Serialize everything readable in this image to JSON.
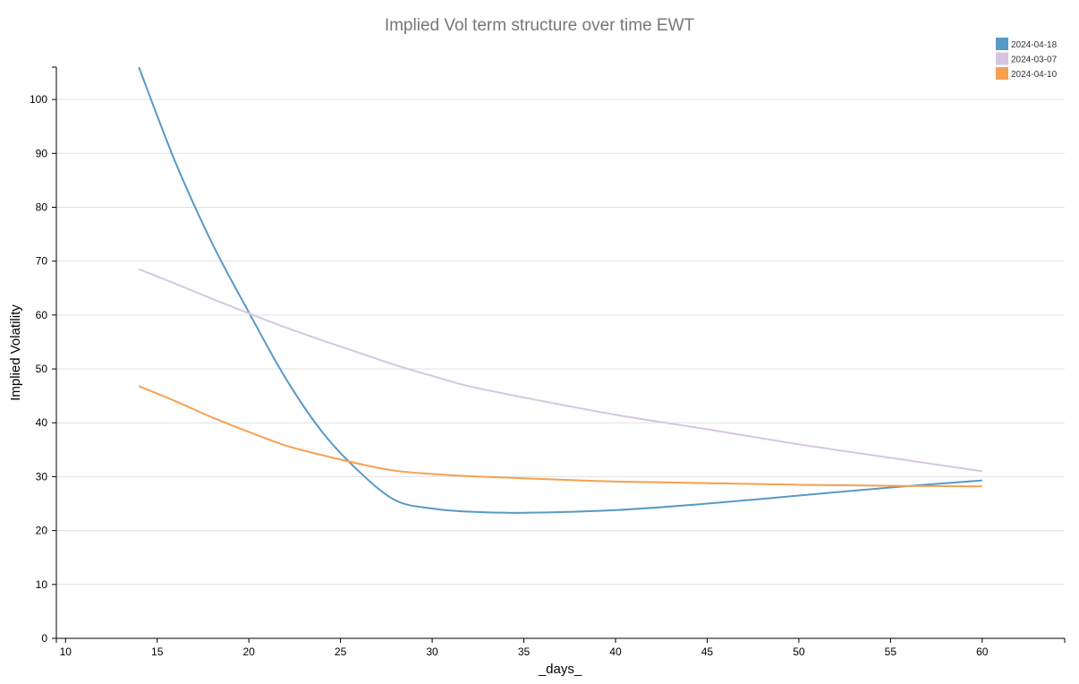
{
  "chart_data": {
    "type": "line",
    "title": "Implied Vol term structure over time EWT",
    "xlabel": "_days_",
    "ylabel": "Implied Volatility",
    "xlim": [
      9.5,
      64.5
    ],
    "ylim": [
      0,
      106
    ],
    "x_ticks": [
      10,
      15,
      20,
      25,
      30,
      35,
      40,
      45,
      50,
      55,
      60
    ],
    "y_ticks": [
      0,
      10,
      20,
      30,
      40,
      50,
      60,
      70,
      80,
      90,
      100
    ],
    "grid": true,
    "legend_position": "top-right",
    "series": [
      {
        "name": "2024-04-18",
        "color": "#5799c7",
        "x": [
          14,
          16,
          18,
          20,
          22,
          24,
          26,
          28,
          30,
          32,
          35,
          40,
          45,
          50,
          55,
          60
        ],
        "y": [
          106,
          88.3,
          73.3,
          60.5,
          48.3,
          38.3,
          31,
          25.6,
          24.1,
          23.5,
          23.3,
          23.8,
          25,
          26.5,
          28,
          29.3
        ]
      },
      {
        "name": "2024-03-07",
        "color": "#d6c6e2",
        "x": [
          14,
          16,
          18,
          20,
          22,
          24,
          26,
          28,
          30,
          32,
          35,
          40,
          45,
          50,
          55,
          60
        ],
        "y": [
          68.5,
          65.8,
          63,
          60.3,
          57.7,
          55.3,
          53,
          50.7,
          48.7,
          46.8,
          44.7,
          41.5,
          38.8,
          36,
          33.5,
          31
        ]
      },
      {
        "name": "2024-04-10",
        "color": "#f7a04f",
        "x": [
          14,
          16,
          18,
          20,
          22,
          24,
          26,
          28,
          30,
          32,
          35,
          40,
          45,
          50,
          55,
          60
        ],
        "y": [
          46.8,
          44,
          41,
          38.3,
          35.8,
          34,
          32.4,
          31.1,
          30.5,
          30.1,
          29.7,
          29.1,
          28.8,
          28.5,
          28.3,
          28.2
        ]
      }
    ]
  }
}
